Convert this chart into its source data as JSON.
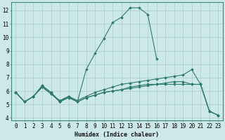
{
  "xlabel": "Humidex (Indice chaleur)",
  "bg_color": "#cce8e8",
  "grid_color": "#aacccc",
  "line_color": "#2d7a6e",
  "xlim": [
    -0.5,
    23.5
  ],
  "ylim": [
    3.8,
    12.6
  ],
  "xticks": [
    0,
    1,
    2,
    3,
    4,
    5,
    6,
    7,
    8,
    9,
    10,
    11,
    12,
    13,
    14,
    15,
    16,
    17,
    18,
    19,
    20,
    21,
    22,
    23
  ],
  "yticks": [
    4,
    5,
    6,
    7,
    8,
    9,
    10,
    11,
    12
  ],
  "series": [
    {
      "x": [
        0,
        1,
        2,
        3,
        4,
        5,
        6,
        7,
        8,
        9,
        10,
        11,
        12,
        13,
        14,
        15,
        16
      ],
      "y": [
        5.9,
        5.2,
        5.6,
        6.4,
        5.9,
        5.2,
        5.6,
        5.2,
        7.6,
        8.8,
        9.9,
        11.1,
        11.5,
        12.2,
        12.2,
        11.7,
        8.4
      ]
    },
    {
      "x": [
        0,
        1,
        2,
        3,
        4,
        5,
        6,
        7,
        8,
        9,
        10,
        11,
        12,
        13,
        14,
        15,
        16,
        17,
        18,
        19,
        20,
        21,
        22,
        23
      ],
      "y": [
        5.9,
        5.2,
        5.6,
        6.3,
        5.8,
        5.3,
        5.6,
        5.3,
        5.6,
        5.9,
        6.1,
        6.3,
        6.5,
        6.6,
        6.7,
        6.8,
        6.9,
        7.0,
        7.1,
        7.2,
        7.6,
        6.5,
        4.5,
        4.2
      ]
    },
    {
      "x": [
        0,
        1,
        2,
        3,
        4,
        5,
        6,
        7,
        8,
        9,
        10,
        11,
        12,
        13,
        14,
        15,
        16,
        17,
        18,
        19,
        20,
        21,
        22,
        23
      ],
      "y": [
        5.9,
        5.2,
        5.6,
        6.3,
        5.8,
        5.2,
        5.5,
        5.2,
        5.5,
        5.7,
        5.9,
        6.0,
        6.1,
        6.2,
        6.3,
        6.4,
        6.5,
        6.6,
        6.7,
        6.7,
        6.5,
        6.5,
        4.5,
        4.2
      ]
    },
    {
      "x": [
        0,
        1,
        2,
        3,
        4,
        5,
        6,
        7,
        8,
        9,
        10,
        11,
        12,
        13,
        14,
        15,
        16,
        17,
        18,
        19,
        20,
        21,
        22,
        23
      ],
      "y": [
        5.9,
        5.2,
        5.6,
        6.4,
        5.9,
        5.2,
        5.6,
        5.2,
        5.5,
        5.7,
        5.9,
        6.0,
        6.1,
        6.3,
        6.4,
        6.5,
        6.5,
        6.5,
        6.5,
        6.5,
        6.5,
        6.5,
        4.5,
        4.2
      ]
    }
  ]
}
